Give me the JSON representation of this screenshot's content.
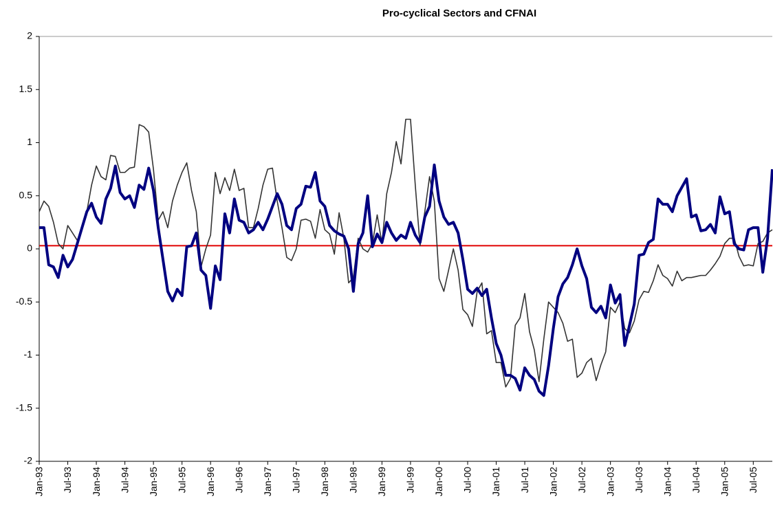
{
  "chart_data": {
    "type": "line",
    "title": "Pro-cyclical Sectors and CFNAI",
    "categories": [
      "Jan-93",
      null,
      null,
      null,
      null,
      null,
      "Jul-93",
      null,
      null,
      null,
      null,
      null,
      "Jan-94",
      null,
      null,
      null,
      null,
      null,
      "Jul-94",
      null,
      null,
      null,
      null,
      null,
      "Jan-95",
      null,
      null,
      null,
      null,
      null,
      "Jul-95",
      null,
      null,
      null,
      null,
      null,
      "Jan-96",
      null,
      null,
      null,
      null,
      null,
      "Jul-96",
      null,
      null,
      null,
      null,
      null,
      "Jan-97",
      null,
      null,
      null,
      null,
      null,
      "Jul-97",
      null,
      null,
      null,
      null,
      null,
      "Jan-98",
      null,
      null,
      null,
      null,
      null,
      "Jul-98",
      null,
      null,
      null,
      null,
      null,
      "Jan-99",
      null,
      null,
      null,
      null,
      null,
      "Jul-99",
      null,
      null,
      null,
      null,
      null,
      "Jan-00",
      null,
      null,
      null,
      null,
      null,
      "Jul-00",
      null,
      null,
      null,
      null,
      null,
      "Jan-01",
      null,
      null,
      null,
      null,
      null,
      "Jul-01",
      null,
      null,
      null,
      null,
      null,
      "Jan-02",
      null,
      null,
      null,
      null,
      null,
      "Jul-02",
      null,
      null,
      null,
      null,
      null,
      "Jan-03",
      null,
      null,
      null,
      null,
      null,
      "Jul-03",
      null,
      null,
      null,
      null,
      null,
      "Jan-04",
      null,
      null,
      null,
      null,
      null,
      "Jul-04",
      null,
      null,
      null,
      null,
      null,
      "Jan-05",
      null,
      null,
      null,
      null,
      null,
      "Jul-05",
      null,
      null,
      null,
      null
    ],
    "series": [
      {
        "color": "#333333",
        "values": [
          0.35,
          0.45,
          0.4,
          0.25,
          0.05,
          0.0,
          0.22,
          0.15,
          0.08,
          0.2,
          0.35,
          0.6,
          0.78,
          0.68,
          0.65,
          0.88,
          0.87,
          0.72,
          0.72,
          0.76,
          0.77,
          1.17,
          1.15,
          1.1,
          0.75,
          0.27,
          0.35,
          0.2,
          0.45,
          0.6,
          0.72,
          0.81,
          0.55,
          0.35,
          -0.17,
          0.0,
          0.13,
          0.72,
          0.52,
          0.67,
          0.55,
          0.75,
          0.55,
          0.57,
          0.2,
          0.2,
          0.38,
          0.6,
          0.75,
          0.76,
          0.45,
          0.2,
          -0.08,
          -0.11,
          0.0,
          0.27,
          0.28,
          0.26,
          0.1,
          0.37,
          0.18,
          0.14,
          -0.05,
          0.34,
          0.1,
          -0.32,
          -0.27,
          0.1,
          0.0,
          -0.03,
          0.05,
          0.32,
          0.05,
          0.52,
          0.72,
          1.01,
          0.8,
          1.22,
          1.22,
          0.6,
          0.03,
          0.35,
          0.68,
          0.45,
          -0.28,
          -0.4,
          -0.2,
          0.0,
          -0.2,
          -0.57,
          -0.62,
          -0.73,
          -0.4,
          -0.32,
          -0.8,
          -0.77,
          -1.07,
          -1.07,
          -1.3,
          -1.22,
          -0.72,
          -0.65,
          -0.42,
          -0.78,
          -0.95,
          -1.25,
          -0.85,
          -0.5,
          -0.55,
          -0.6,
          -0.7,
          -0.87,
          -0.85,
          -1.21,
          -1.17,
          -1.07,
          -1.03,
          -1.24,
          -1.09,
          -0.97,
          -0.55,
          -0.6,
          -0.5,
          -0.75,
          -0.79,
          -0.68,
          -0.48,
          -0.4,
          -0.41,
          -0.3,
          -0.15,
          -0.25,
          -0.28,
          -0.35,
          -0.21,
          -0.3,
          -0.27,
          -0.27,
          -0.26,
          -0.25,
          -0.25,
          -0.2,
          -0.14,
          -0.07,
          0.05,
          0.1,
          0.1,
          -0.07,
          -0.16,
          -0.15,
          -0.16,
          0.05,
          0.07,
          0.15,
          0.18
        ]
      },
      {
        "color": "#000080",
        "values": [
          0.2,
          0.2,
          -0.15,
          -0.17,
          -0.27,
          -0.06,
          -0.17,
          -0.1,
          0.05,
          0.2,
          0.35,
          0.43,
          0.3,
          0.24,
          0.47,
          0.57,
          0.78,
          0.53,
          0.47,
          0.5,
          0.39,
          0.6,
          0.56,
          0.76,
          0.55,
          0.2,
          -0.1,
          -0.4,
          -0.49,
          -0.38,
          -0.44,
          0.02,
          0.03,
          0.15,
          -0.2,
          -0.25,
          -0.56,
          -0.16,
          -0.29,
          0.33,
          0.15,
          0.47,
          0.27,
          0.25,
          0.15,
          0.18,
          0.25,
          0.18,
          0.28,
          0.4,
          0.52,
          0.42,
          0.22,
          0.18,
          0.38,
          0.42,
          0.59,
          0.58,
          0.72,
          0.45,
          0.4,
          0.22,
          0.17,
          0.14,
          0.12,
          0.0,
          -0.4,
          0.05,
          0.15,
          0.5,
          0.02,
          0.14,
          0.06,
          0.25,
          0.15,
          0.08,
          0.13,
          0.1,
          0.25,
          0.13,
          0.06,
          0.3,
          0.4,
          0.79,
          0.45,
          0.3,
          0.23,
          0.25,
          0.15,
          -0.1,
          -0.38,
          -0.42,
          -0.37,
          -0.44,
          -0.38,
          -0.65,
          -0.89,
          -1.0,
          -1.19,
          -1.19,
          -1.22,
          -1.33,
          -1.12,
          -1.19,
          -1.23,
          -1.34,
          -1.38,
          -1.1,
          -0.75,
          -0.45,
          -0.33,
          -0.27,
          -0.15,
          0.0,
          -0.16,
          -0.28,
          -0.55,
          -0.6,
          -0.54,
          -0.65,
          -0.34,
          -0.51,
          -0.43,
          -0.91,
          -0.72,
          -0.52,
          -0.06,
          -0.05,
          0.06,
          0.09,
          0.47,
          0.42,
          0.42,
          0.35,
          0.5,
          0.58,
          0.66,
          0.3,
          0.32,
          0.17,
          0.18,
          0.23,
          0.15,
          0.49,
          0.33,
          0.35,
          0.05,
          0.0,
          -0.01,
          0.18,
          0.2,
          0.2,
          -0.22,
          0.1,
          0.75
        ]
      }
    ],
    "reference_line": {
      "value": 0.03,
      "color": "#e00000"
    },
    "ylim": [
      -2,
      2
    ],
    "yticks": [
      -2,
      -1.5,
      -1,
      -0.5,
      0,
      0.5,
      1,
      1.5,
      2
    ]
  }
}
